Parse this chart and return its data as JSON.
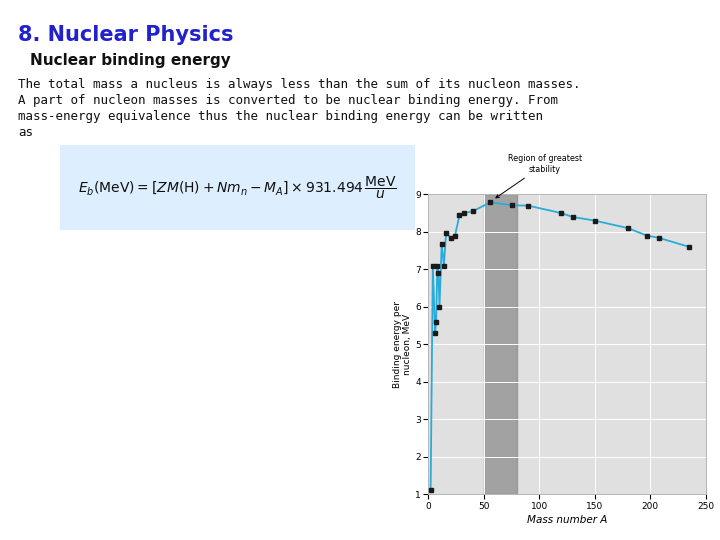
{
  "title": "8. Nuclear Physics",
  "subtitle": "Nuclear binding energy",
  "body_line1": "The total mass a nucleus is always less than the sum of its nucleon masses.",
  "body_line2": "A part of nucleon masses is converted to be nuclear binding energy. From",
  "body_line3": "mass-energy equivalence thus the nuclear binding energy can be written",
  "body_line4": "as",
  "graph_xlabel": "Mass number A",
  "graph_ylabel": "Binding energy per\nnucleon, MeV",
  "annotation": "Region of greatest\nstability",
  "shade_xmin": 50,
  "shade_xmax": 80,
  "xlim": [
    0,
    250
  ],
  "ylim": [
    1.0,
    9.0
  ],
  "xticks": [
    0,
    50,
    100,
    150,
    200,
    250
  ],
  "yticks": [
    1.0,
    2.0,
    3.0,
    4.0,
    5.0,
    6.0,
    7.0,
    8.0,
    9.0
  ],
  "line_color": "#29acd9",
  "dot_color": "#1a1a1a",
  "shade_color": "#888888",
  "background_color": "#ffffff",
  "plot_bg_color": "#e0e0e0",
  "title_color": "#2222cc",
  "formula_bg": "#ddeeff",
  "data_x": [
    2,
    4,
    6,
    7,
    8,
    9,
    10,
    12,
    14,
    16,
    20,
    24,
    28,
    32,
    40,
    56,
    75,
    90,
    120,
    130,
    150,
    180,
    197,
    208,
    235
  ],
  "data_y": [
    1.1,
    7.1,
    5.3,
    5.6,
    7.1,
    6.9,
    6.0,
    7.68,
    7.1,
    7.98,
    7.84,
    7.9,
    8.44,
    8.5,
    8.55,
    8.79,
    8.71,
    8.7,
    8.5,
    8.4,
    8.3,
    8.1,
    7.9,
    7.84,
    7.6
  ]
}
